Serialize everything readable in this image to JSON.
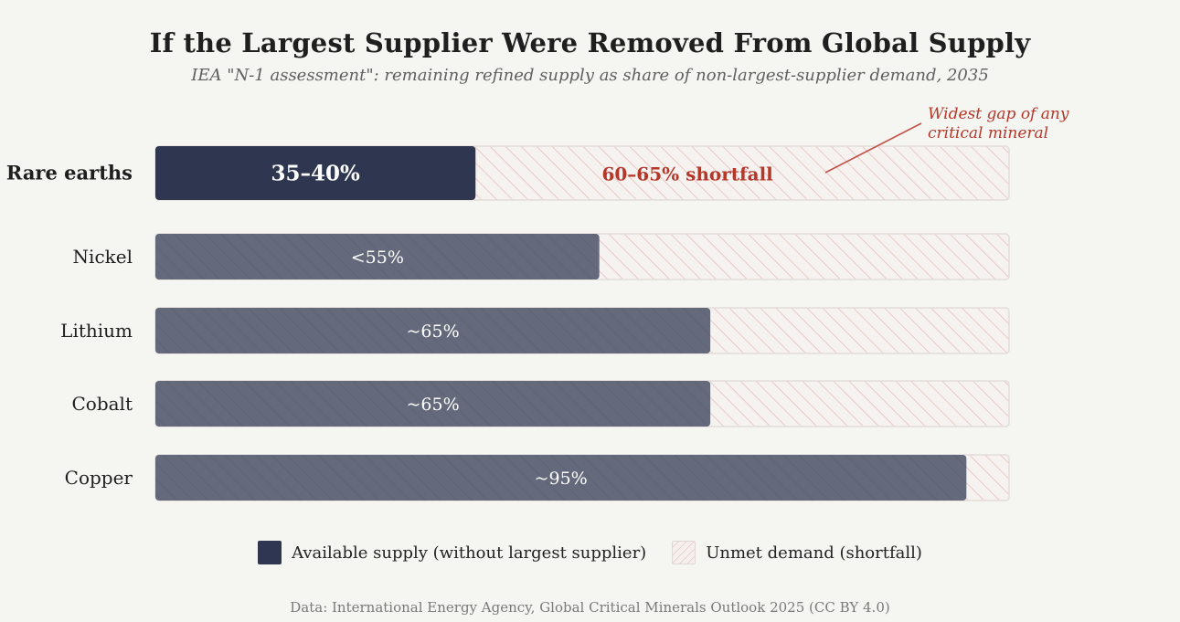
{
  "title": "If the Largest Supplier Were Removed From Global Supply",
  "subtitle": "IEA \"N-1 assessment\": remaining refined supply as share of non-largest-supplier demand, 2035",
  "annotation": "Widest gap of any\ncritical mineral",
  "legend": {
    "available": "Available supply (without largest supplier)",
    "shortfall": "Unmet demand (shortfall)"
  },
  "source": "Data: International Energy Agency, Global Critical Minerals Outlook 2025 (CC BY 4.0)",
  "colors": {
    "highlight": "#2e3650",
    "bar": "#646a7c",
    "shortfall_text": "#b5372a",
    "annotation": "#b5372a",
    "hatch": "#e9c6c2"
  },
  "chart_data": {
    "type": "bar",
    "orientation": "horizontal",
    "xlim": [
      0,
      100
    ],
    "categories": [
      "Rare earths",
      "Nickel",
      "Lithium",
      "Cobalt",
      "Copper"
    ],
    "series": [
      {
        "name": "Available supply (without largest supplier)",
        "values": [
          37.5,
          52,
          65,
          65,
          95
        ],
        "labels": [
          "35–40%",
          "<55%",
          "~65%",
          "~65%",
          "~95%"
        ]
      },
      {
        "name": "Unmet demand (shortfall)",
        "values": [
          62.5,
          48,
          35,
          35,
          5
        ],
        "labels": [
          "60–65% shortfall",
          "",
          "",
          "",
          ""
        ]
      }
    ],
    "highlight_category": "Rare earths"
  }
}
